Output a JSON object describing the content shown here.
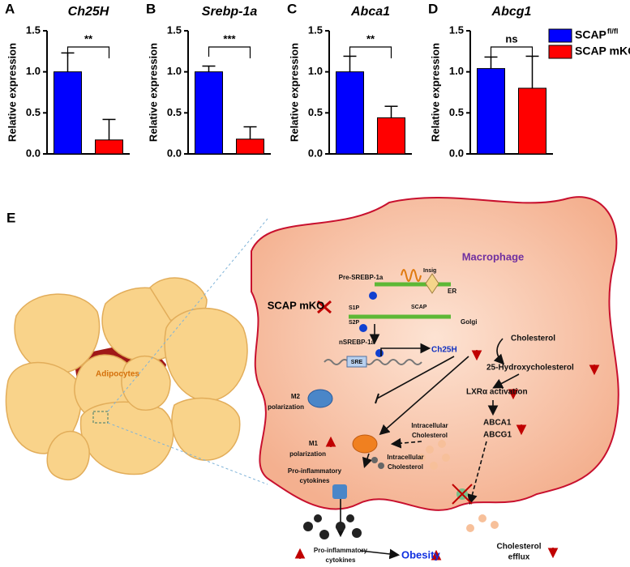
{
  "chart_data": [
    {
      "type": "bar",
      "panel": "A",
      "title": "Ch25H",
      "ylabel": "Relative expression",
      "values": [
        1.0,
        0.17
      ],
      "errors": [
        0.23,
        0.25
      ],
      "significance": "**",
      "ylim": [
        0,
        1.5
      ],
      "yticks": [
        {
          "value": 0,
          "label": "0.0"
        },
        0.5,
        {
          "value": 1,
          "label": "1.0"
        },
        1.5
      ]
    },
    {
      "type": "bar",
      "panel": "B",
      "title": "Srebp-1a",
      "ylabel": "Relative expression",
      "values": [
        1.0,
        0.18
      ],
      "errors": [
        0.07,
        0.15
      ],
      "significance": "***",
      "ylim": [
        0,
        1.5
      ],
      "yticks": [
        {
          "value": 0,
          "label": "0.0"
        },
        0.5,
        {
          "value": 1,
          "label": "1.0"
        },
        1.5
      ]
    },
    {
      "type": "bar",
      "panel": "C",
      "title": "Abca1",
      "ylabel": "Relative expression",
      "values": [
        1.0,
        0.44
      ],
      "errors": [
        0.19,
        0.14
      ],
      "significance": "**",
      "ylim": [
        0,
        1.5
      ],
      "yticks": [
        {
          "value": 0,
          "label": "0.0"
        },
        0.5,
        {
          "value": 1,
          "label": "1.0"
        },
        1.5
      ]
    },
    {
      "type": "bar",
      "panel": "D",
      "title": "Abcg1",
      "ylabel": "Relative expression",
      "values": [
        1.04,
        0.8
      ],
      "errors": [
        0.14,
        0.39
      ],
      "significance": "ns",
      "ylim": [
        0,
        1.5
      ],
      "yticks": [
        {
          "value": 0,
          "label": "0.0"
        },
        0.5,
        {
          "value": 1,
          "label": "1.0"
        },
        1.5
      ]
    }
  ],
  "legend": [
    {
      "name": "SCAP",
      "superscript": "fl/fl",
      "color": "#0000ff"
    },
    {
      "name": "SCAP mKO",
      "color": "#ff0000"
    }
  ],
  "diagram": {
    "panel": "E",
    "labels": {
      "macrophage": "Macrophage",
      "adipocytes": "Adipocytes",
      "pre_srebp": "Pre-SREBP-1a",
      "insig": "Insig",
      "er": "ER",
      "scap": "SCAP",
      "s1p": "S1P",
      "s2p": "S2P",
      "golgi": "Golgi",
      "scap_mko": "SCAP mKO",
      "nsrebp": "nSREBP-1a",
      "sre": "SRE",
      "ch25h": "Ch25H",
      "cholesterol": "Cholesterol",
      "hydroxy": "25-Hydroxycholesterol",
      "m2": [
        "M2",
        "polarization"
      ],
      "lxr": "LXRα activation",
      "m1": [
        "M1",
        "polarization"
      ],
      "intra_1": [
        "Intracellular",
        "Cholesterol"
      ],
      "abca1": "ABCA1",
      "abcg1": "ABCG1",
      "intra_2": [
        "Intracellular",
        "Cholesterol"
      ],
      "cytokines_1": [
        "Pro-inflammatory",
        "cytokines"
      ],
      "efflux": [
        "Cholesterol",
        "efflux"
      ],
      "cytokines_2": [
        "Pro-inflammatory",
        "cytokines"
      ],
      "obesity": "Obesity"
    }
  }
}
